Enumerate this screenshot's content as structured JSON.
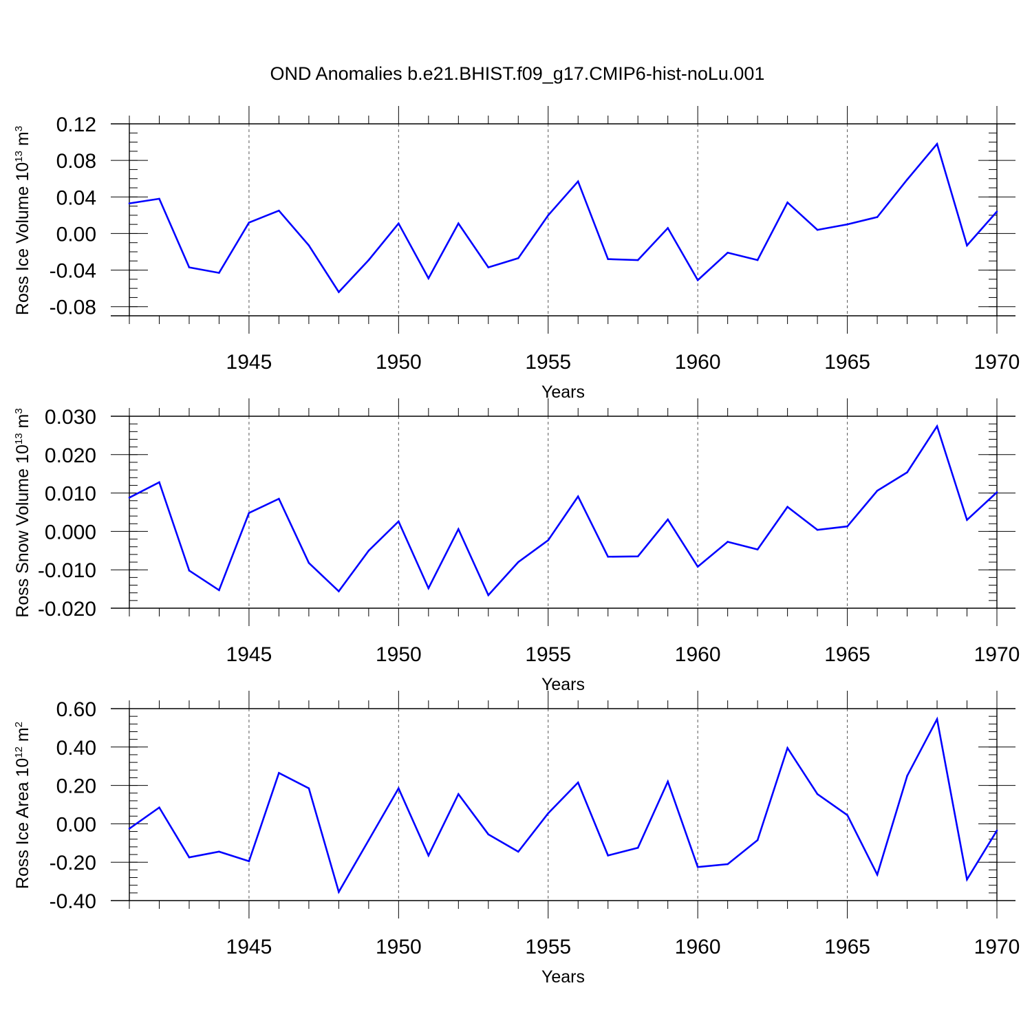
{
  "figure_title": "OND Anomalies b.e21.BHIST.f09_g17.CMIP6-hist-noLu.001",
  "line_color": "#0000ff",
  "chart_data": [
    {
      "type": "line",
      "title": "OND Anomalies b.e21.BHIST.f09_g17.CMIP6-hist-noLu.001",
      "xlabel": "Years",
      "ylabel": {
        "base": "Ross Ice Volume 10",
        "exp1": "13",
        "unit": " m",
        "exp2": "3"
      },
      "xlim": [
        1941,
        1970
      ],
      "ylim": [
        -0.09,
        0.12
      ],
      "x_ticks": [
        "1945",
        "1950",
        "1955",
        "1960",
        "1965",
        "1970"
      ],
      "y_ticks": [
        {
          "value": -0.08,
          "label": "-0.08"
        },
        {
          "value": -0.04,
          "label": "-0.04"
        },
        {
          "value": 0.0,
          "label": "0.00"
        },
        {
          "value": 0.04,
          "label": "0.04"
        },
        {
          "value": 0.08,
          "label": "0.08"
        },
        {
          "value": 0.12,
          "label": "0.12"
        }
      ],
      "y_minor_step": 0.01,
      "x": [
        1941,
        1942,
        1943,
        1944,
        1945,
        1946,
        1947,
        1948,
        1949,
        1950,
        1951,
        1952,
        1953,
        1954,
        1955,
        1956,
        1957,
        1958,
        1959,
        1960,
        1961,
        1962,
        1963,
        1964,
        1965,
        1966,
        1967,
        1968,
        1969,
        1970
      ],
      "series": [
        {
          "name": "Ross Ice Volume",
          "values": [
            0.033,
            0.038,
            -0.037,
            -0.043,
            0.012,
            0.025,
            -0.013,
            -0.064,
            -0.029,
            0.011,
            -0.049,
            0.011,
            -0.037,
            -0.027,
            0.02,
            0.057,
            -0.028,
            -0.029,
            0.006,
            -0.051,
            -0.021,
            -0.029,
            0.034,
            0.004,
            0.01,
            0.018,
            0.059,
            0.098,
            -0.013,
            0.024
          ]
        }
      ]
    },
    {
      "type": "line",
      "title": "",
      "xlabel": "Years",
      "ylabel": {
        "base": "Ross Snow Volume 10",
        "exp1": "13",
        "unit": " m",
        "exp2": "3"
      },
      "xlim": [
        1941,
        1970
      ],
      "ylim": [
        -0.02,
        0.03
      ],
      "x_ticks": [
        "1945",
        "1950",
        "1955",
        "1960",
        "1965",
        "1970"
      ],
      "y_ticks": [
        {
          "value": -0.02,
          "label": "-0.020"
        },
        {
          "value": -0.01,
          "label": "-0.010"
        },
        {
          "value": 0.0,
          "label": "0.000"
        },
        {
          "value": 0.01,
          "label": "0.010"
        },
        {
          "value": 0.02,
          "label": "0.020"
        },
        {
          "value": 0.03,
          "label": "0.030"
        }
      ],
      "y_minor_step": 0.002,
      "x": [
        1941,
        1942,
        1943,
        1944,
        1945,
        1946,
        1947,
        1948,
        1949,
        1950,
        1951,
        1952,
        1953,
        1954,
        1955,
        1956,
        1957,
        1958,
        1959,
        1960,
        1961,
        1962,
        1963,
        1964,
        1965,
        1966,
        1967,
        1968,
        1969,
        1970
      ],
      "series": [
        {
          "name": "Ross Snow Volume",
          "values": [
            0.0088,
            0.0128,
            -0.0102,
            -0.0153,
            0.0048,
            0.0085,
            -0.0082,
            -0.0156,
            -0.005,
            0.0026,
            -0.0148,
            0.0006,
            -0.0166,
            -0.008,
            -0.0023,
            0.0091,
            -0.0066,
            -0.0065,
            0.0031,
            -0.0092,
            -0.0027,
            -0.0047,
            0.0064,
            0.0004,
            0.0013,
            0.0106,
            0.0154,
            0.0274,
            0.003,
            0.0102
          ]
        }
      ]
    },
    {
      "type": "line",
      "title": "",
      "xlabel": "Years",
      "ylabel": {
        "base": "Ross Ice Area 10",
        "exp1": "12",
        "unit": " m",
        "exp2": "2"
      },
      "xlim": [
        1941,
        1970
      ],
      "ylim": [
        -0.4,
        0.6
      ],
      "x_ticks": [
        "1945",
        "1950",
        "1955",
        "1960",
        "1965",
        "1970"
      ],
      "y_ticks": [
        {
          "value": -0.4,
          "label": "-0.40"
        },
        {
          "value": -0.2,
          "label": "-0.20"
        },
        {
          "value": 0.0,
          "label": "0.00"
        },
        {
          "value": 0.2,
          "label": "0.20"
        },
        {
          "value": 0.4,
          "label": "0.40"
        },
        {
          "value": 0.6,
          "label": "0.60"
        }
      ],
      "y_minor_step": 0.04,
      "x": [
        1941,
        1942,
        1943,
        1944,
        1945,
        1946,
        1947,
        1948,
        1949,
        1950,
        1951,
        1952,
        1953,
        1954,
        1955,
        1956,
        1957,
        1958,
        1959,
        1960,
        1961,
        1962,
        1963,
        1964,
        1965,
        1966,
        1967,
        1968,
        1969,
        1970
      ],
      "series": [
        {
          "name": "Ross Ice Area",
          "values": [
            -0.025,
            0.085,
            -0.175,
            -0.145,
            -0.195,
            0.265,
            0.185,
            -0.355,
            -0.085,
            0.185,
            -0.165,
            0.155,
            -0.055,
            -0.145,
            0.055,
            0.215,
            -0.165,
            -0.125,
            0.22,
            -0.225,
            -0.21,
            -0.085,
            0.395,
            0.155,
            0.045,
            -0.265,
            0.25,
            0.545,
            -0.29,
            -0.035
          ]
        }
      ]
    }
  ]
}
